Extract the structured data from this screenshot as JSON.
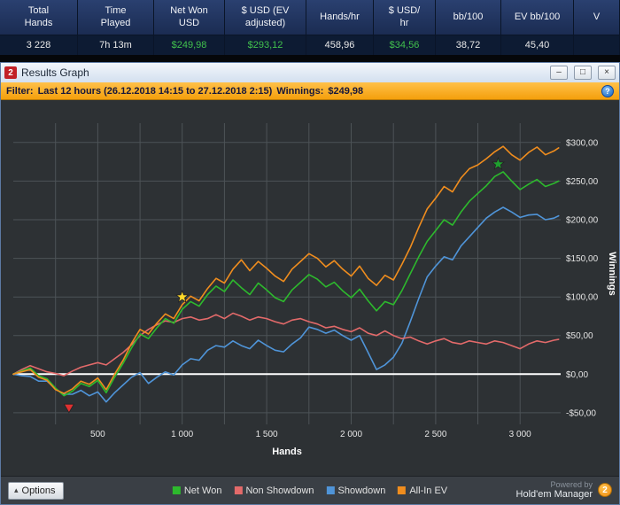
{
  "stats_bar": {
    "columns": [
      {
        "label": "Total\nHands",
        "value": "3 228",
        "value_color": "white"
      },
      {
        "label": "Time\nPlayed",
        "value": "7h 13m",
        "value_color": "white"
      },
      {
        "label": "Net Won\nUSD",
        "value": "$249,98",
        "value_color": "green"
      },
      {
        "label": "$ USD (EV\nadjusted)",
        "value": "$293,12",
        "value_color": "green"
      },
      {
        "label": "Hands/hr",
        "value": "458,96",
        "value_color": "white"
      },
      {
        "label": "$ USD/\nhr",
        "value": "$34,56",
        "value_color": "green"
      },
      {
        "label": "bb/100",
        "value": "38,72",
        "value_color": "white"
      },
      {
        "label": "EV bb/100",
        "value": "45,40",
        "value_color": "white"
      },
      {
        "label": "V",
        "value": "",
        "value_color": "white"
      }
    ]
  },
  "window": {
    "title": "Results Graph",
    "icon_text": "2",
    "controls": {
      "minimize": "–",
      "restore": "□",
      "close": "×"
    }
  },
  "filter_bar": {
    "prefix": "Filter:",
    "text": "Last 12 hours (26.12.2018 14:15 to 27.12.2018 2:15)",
    "winnings_label": "Winnings:",
    "winnings_value": "$249,98",
    "help_icon": "?"
  },
  "chart_data": {
    "type": "line",
    "title": "Results Graph",
    "xlabel": "Hands",
    "ylabel": "Winnings",
    "xlim": [
      0,
      3240
    ],
    "ylim": [
      -65,
      325
    ],
    "x_grid_step": 250,
    "grid_color": "#4d5357",
    "background": "#2d3134",
    "zero_line_color": "#ffffff",
    "x_ticks": [
      500,
      1000,
      1500,
      2000,
      2500,
      3000
    ],
    "x_tick_labels": [
      "500",
      "1 000",
      "1 500",
      "2 000",
      "2 500",
      "3 000"
    ],
    "y_ticks": [
      -50,
      0,
      50,
      100,
      150,
      200,
      250,
      300
    ],
    "y_tick_labels": [
      "-$50,00",
      "$0,00",
      "$50,00",
      "$100,00",
      "$150,00",
      "$200,00",
      "$250,00",
      "$300,00"
    ],
    "x": [
      0,
      50,
      100,
      150,
      200,
      250,
      300,
      350,
      400,
      450,
      500,
      550,
      600,
      650,
      700,
      750,
      800,
      850,
      900,
      950,
      1000,
      1050,
      1100,
      1150,
      1200,
      1250,
      1300,
      1350,
      1400,
      1450,
      1500,
      1550,
      1600,
      1650,
      1700,
      1750,
      1800,
      1850,
      1900,
      1950,
      2000,
      2050,
      2100,
      2150,
      2200,
      2250,
      2300,
      2350,
      2400,
      2450,
      2500,
      2550,
      2600,
      2650,
      2700,
      2750,
      2800,
      2850,
      2900,
      2950,
      3000,
      3050,
      3100,
      3150,
      3200,
      3228
    ],
    "series": [
      {
        "name": "Net Won",
        "color": "#2db92d",
        "values": [
          0,
          4,
          8,
          -2,
          -6,
          -18,
          -28,
          -22,
          -12,
          -16,
          -8,
          -24,
          -4,
          14,
          34,
          52,
          46,
          60,
          72,
          66,
          84,
          94,
          88,
          103,
          114,
          107,
          122,
          112,
          103,
          118,
          109,
          99,
          94,
          109,
          119,
          129,
          123,
          113,
          119,
          108,
          99,
          110,
          95,
          82,
          94,
          90,
          108,
          130,
          152,
          172,
          186,
          200,
          193,
          210,
          224,
          234,
          244,
          256,
          262,
          250,
          239,
          246,
          252,
          243,
          247,
          250
        ]
      },
      {
        "name": "Non Showdown",
        "color": "#e36a6a",
        "values": [
          0,
          6,
          11,
          7,
          3,
          1,
          -2,
          4,
          9,
          12,
          15,
          12,
          20,
          28,
          38,
          50,
          58,
          64,
          69,
          67,
          72,
          74,
          70,
          72,
          77,
          72,
          79,
          75,
          70,
          74,
          72,
          68,
          65,
          70,
          72,
          68,
          65,
          60,
          62,
          58,
          55,
          60,
          53,
          50,
          56,
          50,
          46,
          48,
          43,
          39,
          43,
          46,
          41,
          39,
          43,
          41,
          39,
          43,
          41,
          37,
          33,
          39,
          43,
          41,
          44,
          45
        ]
      },
      {
        "name": "Showdown",
        "color": "#4f94d8",
        "values": [
          0,
          -2,
          -3,
          -9,
          -9,
          -19,
          -26,
          -26,
          -21,
          -28,
          -23,
          -36,
          -24,
          -14,
          -4,
          2,
          -12,
          -4,
          3,
          -1,
          12,
          20,
          18,
          31,
          37,
          35,
          43,
          37,
          33,
          44,
          37,
          31,
          29,
          39,
          47,
          61,
          58,
          53,
          57,
          50,
          44,
          50,
          28,
          6,
          12,
          22,
          40,
          68,
          98,
          126,
          140,
          152,
          148,
          166,
          178,
          190,
          202,
          210,
          216,
          210,
          203,
          206,
          207,
          200,
          202,
          205
        ]
      },
      {
        "name": "All-In EV",
        "color": "#f08d1e",
        "values": [
          0,
          3,
          6,
          -4,
          -8,
          -20,
          -25,
          -19,
          -9,
          -13,
          -5,
          -20,
          0,
          18,
          40,
          58,
          52,
          66,
          78,
          72,
          90,
          101,
          95,
          111,
          124,
          118,
          136,
          148,
          134,
          146,
          137,
          127,
          120,
          136,
          146,
          156,
          150,
          139,
          147,
          136,
          127,
          140,
          124,
          115,
          128,
          122,
          142,
          164,
          190,
          214,
          228,
          243,
          236,
          254,
          266,
          271,
          279,
          288,
          295,
          284,
          277,
          287,
          294,
          284,
          289,
          293
        ]
      }
    ],
    "markers": [
      {
        "shape": "triangle-down",
        "color": "#e03131",
        "x": 330,
        "y": -44
      },
      {
        "shape": "star",
        "color": "#ffd92a",
        "x": 1000,
        "y": 100
      },
      {
        "shape": "star",
        "color": "#1fa02f",
        "x": 2870,
        "y": 272
      }
    ]
  },
  "bottom_bar": {
    "options_label": "Options",
    "chevron": "▴",
    "powered_by": "Powered by",
    "brand": "Hold'em Manager",
    "brand_badge": "2"
  }
}
